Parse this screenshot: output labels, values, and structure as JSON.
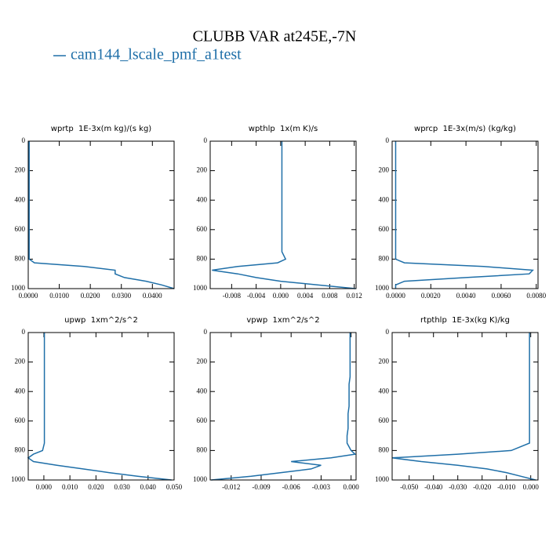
{
  "figure": {
    "title": "CLUBB VAR at245E,-7N",
    "legend": {
      "name": "cam144_lscale_pmf_a1test",
      "color": "#1f6fa8"
    }
  },
  "chart_data": [
    {
      "type": "line",
      "title": "wprtp  1E-3x(m kg)/(s kg)",
      "y": [
        0,
        50,
        100,
        150,
        200,
        250,
        300,
        350,
        400,
        450,
        500,
        550,
        600,
        650,
        700,
        750,
        800,
        825,
        850,
        875,
        900,
        925,
        950,
        975,
        1000
      ],
      "series": [
        {
          "color": "#1f6fa8",
          "values": [
            0.0003,
            0.0003,
            0.0003,
            0.0003,
            0.0003,
            0.0003,
            0.0003,
            0.0003,
            0.0003,
            0.0003,
            0.0003,
            0.0003,
            0.0003,
            0.0003,
            0.0003,
            0.0003,
            0.0003,
            0.002,
            0.018,
            0.028,
            0.028,
            0.031,
            0.038,
            0.043,
            0.047
          ]
        }
      ],
      "xlim": [
        0,
        0.047
      ],
      "xticks": [
        {
          "value": 0,
          "label": "0.0000"
        },
        {
          "value": 0.01,
          "label": "0.0100"
        },
        {
          "value": 0.02,
          "label": "0.0200"
        },
        {
          "value": 0.03,
          "label": "0.0300"
        },
        {
          "value": 0.04,
          "label": "0.0400"
        }
      ],
      "ylim": [
        1000,
        0
      ],
      "yticks": [
        0,
        200,
        400,
        600,
        800,
        1000
      ]
    },
    {
      "type": "line",
      "title": "wpthlp  1x(m K)/s",
      "y": [
        0,
        50,
        100,
        150,
        200,
        250,
        300,
        350,
        400,
        450,
        500,
        550,
        600,
        650,
        700,
        750,
        800,
        825,
        850,
        875,
        900,
        925,
        950,
        975,
        1000
      ],
      "series": [
        {
          "color": "#1f6fa8",
          "values": [
            0.0002,
            0.0002,
            0.0002,
            0.0002,
            0.0002,
            0.0002,
            0.0002,
            0.0002,
            0.0002,
            0.0002,
            0.0002,
            0.0002,
            0.0002,
            0.0002,
            0.0002,
            0.0002,
            0.0008,
            -0.0005,
            -0.007,
            -0.0112,
            -0.007,
            -0.004,
            0,
            0.006,
            0.0122
          ]
        }
      ],
      "xlim": [
        -0.0115,
        0.0123
      ],
      "xticks": [
        {
          "value": -0.008,
          "label": "-0.008"
        },
        {
          "value": -0.004,
          "label": "-0.004"
        },
        {
          "value": 0,
          "label": "0.000"
        },
        {
          "value": 0.004,
          "label": "0.004"
        },
        {
          "value": 0.008,
          "label": "0.008"
        },
        {
          "value": 0.012,
          "label": "0.012"
        }
      ],
      "ylim": [
        1000,
        0
      ],
      "yticks": [
        0,
        200,
        400,
        600,
        800,
        1000
      ]
    },
    {
      "type": "line",
      "title": "wprcp  1E-3x(m/s) (kg/kg)",
      "y": [
        0,
        50,
        100,
        150,
        200,
        250,
        300,
        350,
        400,
        450,
        500,
        550,
        600,
        650,
        700,
        750,
        800,
        825,
        850,
        875,
        900,
        925,
        950,
        975,
        1000
      ],
      "series": [
        {
          "color": "#1f6fa8",
          "values": [
            0,
            0,
            0,
            0,
            0,
            0,
            0,
            0,
            0,
            0,
            0,
            0,
            0,
            0,
            0,
            0,
            0,
            0.0005,
            0.005,
            0.0078,
            0.0076,
            0.004,
            0.0005,
            0,
            0
          ]
        }
      ],
      "xlim": [
        -0.0002,
        0.0081
      ],
      "xticks": [
        {
          "value": 0,
          "label": "0.0000"
        },
        {
          "value": 0.002,
          "label": "0.0020"
        },
        {
          "value": 0.004,
          "label": "0.0040"
        },
        {
          "value": 0.006,
          "label": "0.0060"
        },
        {
          "value": 0.008,
          "label": "0.0080"
        }
      ],
      "ylim": [
        1000,
        0
      ],
      "yticks": [
        0,
        200,
        400,
        600,
        800,
        1000
      ]
    },
    {
      "type": "line",
      "title": "upwp  1xm^2/s^2",
      "y": [
        0,
        50,
        100,
        150,
        200,
        250,
        300,
        350,
        400,
        450,
        500,
        550,
        600,
        650,
        700,
        750,
        800,
        825,
        850,
        875,
        900,
        925,
        950,
        975,
        1000
      ],
      "series": [
        {
          "color": "#1f6fa8",
          "values": [
            0.0002,
            0.0002,
            0.0002,
            0.0002,
            0.0002,
            0.0002,
            0.0002,
            0.0002,
            0.0002,
            0.0002,
            0.0002,
            0.0002,
            0.0002,
            0.0002,
            0.0002,
            0.0002,
            -0.0005,
            -0.004,
            -0.006,
            -0.004,
            0.005,
            0.015,
            0.025,
            0.036,
            0.049
          ]
        }
      ],
      "xlim": [
        -0.006,
        0.05
      ],
      "xticks": [
        {
          "value": 0,
          "label": "0.000"
        },
        {
          "value": 0.01,
          "label": "0.010"
        },
        {
          "value": 0.02,
          "label": "0.020"
        },
        {
          "value": 0.03,
          "label": "0.030"
        },
        {
          "value": 0.04,
          "label": "0.040"
        },
        {
          "value": 0.05,
          "label": "0.050"
        }
      ],
      "ylim": [
        1000,
        0
      ],
      "yticks": [
        0,
        200,
        400,
        600,
        800,
        1000
      ]
    },
    {
      "type": "line",
      "title": "vpwp  1xm^2/s^2",
      "y": [
        0,
        50,
        100,
        150,
        200,
        250,
        300,
        350,
        400,
        450,
        500,
        550,
        600,
        650,
        700,
        750,
        800,
        825,
        850,
        875,
        900,
        925,
        950,
        975,
        1000
      ],
      "series": [
        {
          "color": "#1f6fa8",
          "values": [
            -0.0001,
            -0.0001,
            -0.0001,
            -0.0001,
            -0.0001,
            -0.0001,
            -0.0001,
            -0.0002,
            -0.0002,
            -0.0002,
            -0.0002,
            -0.0003,
            -0.0003,
            -0.0003,
            -0.0004,
            -0.0004,
            0,
            0.0004,
            -0.002,
            -0.006,
            -0.003,
            -0.004,
            -0.007,
            -0.01,
            -0.014
          ]
        }
      ],
      "xlim": [
        -0.0141,
        0.0005
      ],
      "xticks": [
        {
          "value": -0.012,
          "label": "-0.012"
        },
        {
          "value": -0.009,
          "label": "-0.009"
        },
        {
          "value": -0.006,
          "label": "-0.006"
        },
        {
          "value": -0.003,
          "label": "-0.003"
        },
        {
          "value": 0,
          "label": "0.000"
        }
      ],
      "ylim": [
        1000,
        0
      ],
      "yticks": [
        0,
        200,
        400,
        600,
        800,
        1000
      ]
    },
    {
      "type": "line",
      "title": "rtpthlp  1E-3x(kg K)/kg",
      "y": [
        0,
        50,
        100,
        150,
        200,
        250,
        300,
        350,
        400,
        450,
        500,
        550,
        600,
        650,
        700,
        750,
        800,
        825,
        850,
        875,
        900,
        925,
        950,
        975,
        1000
      ],
      "series": [
        {
          "color": "#1f6fa8",
          "values": [
            -0.0005,
            -0.0005,
            -0.0005,
            -0.0005,
            -0.0005,
            -0.0005,
            -0.0005,
            -0.0005,
            -0.0005,
            -0.0005,
            -0.0005,
            -0.0005,
            -0.0005,
            -0.0005,
            -0.0005,
            -0.0005,
            -0.008,
            -0.03,
            -0.057,
            -0.045,
            -0.03,
            -0.018,
            -0.01,
            -0.004,
            0.002
          ]
        }
      ],
      "xlim": [
        -0.057,
        0.003
      ],
      "xticks": [
        {
          "value": -0.05,
          "label": "-0.050"
        },
        {
          "value": -0.04,
          "label": "-0.040"
        },
        {
          "value": -0.03,
          "label": "-0.030"
        },
        {
          "value": -0.02,
          "label": "-0.020"
        },
        {
          "value": -0.01,
          "label": "-0.010"
        },
        {
          "value": 0,
          "label": "0.000"
        }
      ],
      "ylim": [
        1000,
        0
      ],
      "yticks": [
        0,
        200,
        400,
        600,
        800,
        1000
      ]
    }
  ]
}
